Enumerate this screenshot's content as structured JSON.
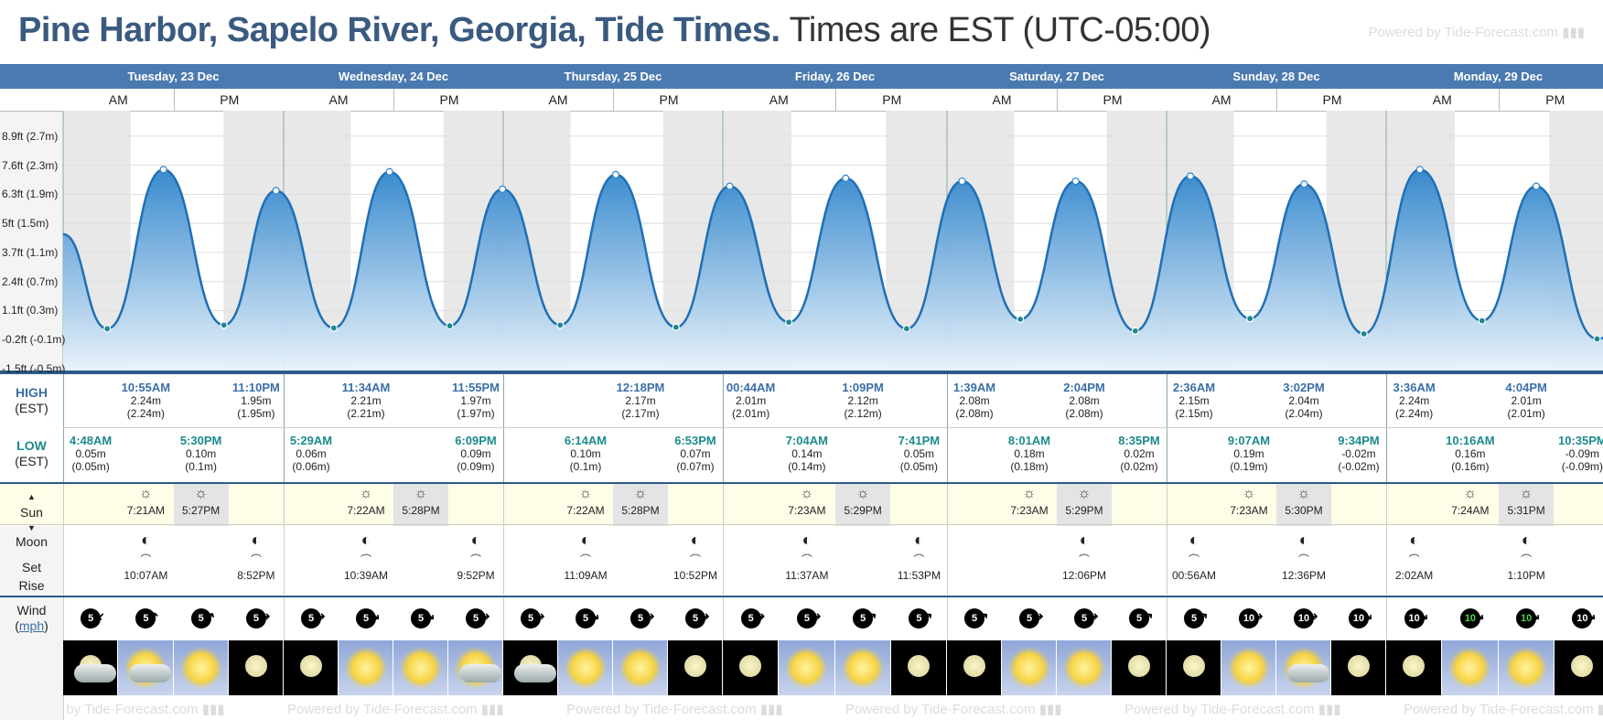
{
  "header": {
    "title_bold": "Pine Harbor, Sapelo River, Georgia, Tide Times.",
    "title_rest": "Times are EST (UTC-05:00)",
    "powered": "Powered by Tide-Forecast.com"
  },
  "days": [
    {
      "label": "Tuesday, 23 Dec",
      "am": "AM",
      "pm": "PM"
    },
    {
      "label": "Wednesday, 24 Dec",
      "am": "AM",
      "pm": "PM"
    },
    {
      "label": "Thursday, 25 Dec",
      "am": "AM",
      "pm": "PM"
    },
    {
      "label": "Friday, 26 Dec",
      "am": "AM",
      "pm": "PM"
    },
    {
      "label": "Saturday, 27 Dec",
      "am": "AM",
      "pm": "PM"
    },
    {
      "label": "Sunday, 28 Dec",
      "am": "AM",
      "pm": "PM"
    },
    {
      "label": "Monday, 29 Dec",
      "am": "AM",
      "pm": "PM"
    }
  ],
  "chart_data": {
    "type": "area",
    "y_tick_labels": [
      "8.9ft (2.7m)",
      "7.6ft (2.3m)",
      "6.3ft (1.9m)",
      "5ft (1.5m)",
      "3.7ft (1.1m)",
      "2.4ft (0.7m)",
      "1.1ft (0.3m)",
      "-0.2ft (-0.1m)",
      "-1.5ft (-0.5m)"
    ],
    "y_tick_values_m": [
      2.7,
      2.3,
      1.9,
      1.5,
      1.1,
      0.7,
      0.3,
      -0.1,
      -0.5
    ],
    "unit": "m",
    "ylim": [
      -0.55,
      3.05
    ],
    "series": [
      {
        "points": [
          {
            "x": "2025-12-23T04:48",
            "y": 0.05,
            "kind": "low"
          },
          {
            "x": "2025-12-23T10:55",
            "y": 2.24,
            "kind": "high"
          },
          {
            "x": "2025-12-23T17:30",
            "y": 0.1,
            "kind": "low"
          },
          {
            "x": "2025-12-23T23:10",
            "y": 1.95,
            "kind": "high"
          },
          {
            "x": "2025-12-24T05:29",
            "y": 0.06,
            "kind": "low"
          },
          {
            "x": "2025-12-24T11:34",
            "y": 2.21,
            "kind": "high"
          },
          {
            "x": "2025-12-24T18:09",
            "y": 0.09,
            "kind": "low"
          },
          {
            "x": "2025-12-24T23:55",
            "y": 1.97,
            "kind": "high"
          },
          {
            "x": "2025-12-25T06:14",
            "y": 0.1,
            "kind": "low"
          },
          {
            "x": "2025-12-25T12:18",
            "y": 2.17,
            "kind": "high"
          },
          {
            "x": "2025-12-25T18:53",
            "y": 0.07,
            "kind": "low"
          },
          {
            "x": "2025-12-26T00:44",
            "y": 2.01,
            "kind": "high"
          },
          {
            "x": "2025-12-26T07:04",
            "y": 0.14,
            "kind": "low"
          },
          {
            "x": "2025-12-26T13:09",
            "y": 2.12,
            "kind": "high"
          },
          {
            "x": "2025-12-26T19:41",
            "y": 0.05,
            "kind": "low"
          },
          {
            "x": "2025-12-27T01:39",
            "y": 2.08,
            "kind": "high"
          },
          {
            "x": "2025-12-27T08:01",
            "y": 0.18,
            "kind": "low"
          },
          {
            "x": "2025-12-27T14:04",
            "y": 2.08,
            "kind": "high"
          },
          {
            "x": "2025-12-27T20:35",
            "y": 0.02,
            "kind": "low"
          },
          {
            "x": "2025-12-28T02:36",
            "y": 2.15,
            "kind": "high"
          },
          {
            "x": "2025-12-28T09:07",
            "y": 0.19,
            "kind": "low"
          },
          {
            "x": "2025-12-28T15:02",
            "y": 2.04,
            "kind": "high"
          },
          {
            "x": "2025-12-28T21:34",
            "y": -0.02,
            "kind": "low"
          },
          {
            "x": "2025-12-29T03:36",
            "y": 2.24,
            "kind": "high"
          },
          {
            "x": "2025-12-29T10:16",
            "y": 0.16,
            "kind": "low"
          },
          {
            "x": "2025-12-29T16:04",
            "y": 2.01,
            "kind": "high"
          },
          {
            "x": "2025-12-29T22:35",
            "y": -0.09,
            "kind": "low"
          }
        ]
      }
    ]
  },
  "labels": {
    "high": "HIGH",
    "low": "LOW",
    "tz": "(EST)",
    "sun": "Sun",
    "moon": "Moon",
    "set": "Set",
    "rise": "Rise",
    "wind": "Wind",
    "mph": "mph"
  },
  "highs": [
    {
      "day": 0,
      "slot": 1,
      "time": "10:55AM",
      "m": "2.24m",
      "mm": "(2.24m)"
    },
    {
      "day": 0,
      "slot": 3,
      "time": "11:10PM",
      "m": "1.95m",
      "mm": "(1.95m)"
    },
    {
      "day": 1,
      "slot": 1,
      "time": "11:34AM",
      "m": "2.21m",
      "mm": "(2.21m)"
    },
    {
      "day": 1,
      "slot": 3,
      "time": "11:55PM",
      "m": "1.97m",
      "mm": "(1.97m)"
    },
    {
      "day": 2,
      "slot": 2,
      "time": "12:18PM",
      "m": "2.17m",
      "mm": "(2.17m)"
    },
    {
      "day": 3,
      "slot": 0,
      "time": "00:44AM",
      "m": "2.01m",
      "mm": "(2.01m)"
    },
    {
      "day": 3,
      "slot": 2,
      "time": "1:09PM",
      "m": "2.12m",
      "mm": "(2.12m)"
    },
    {
      "day": 4,
      "slot": 0,
      "time": "1:39AM",
      "m": "2.08m",
      "mm": "(2.08m)"
    },
    {
      "day": 4,
      "slot": 2,
      "time": "2:04PM",
      "m": "2.08m",
      "mm": "(2.08m)"
    },
    {
      "day": 5,
      "slot": 0,
      "time": "2:36AM",
      "m": "2.15m",
      "mm": "(2.15m)"
    },
    {
      "day": 5,
      "slot": 2,
      "time": "3:02PM",
      "m": "2.04m",
      "mm": "(2.04m)"
    },
    {
      "day": 6,
      "slot": 0,
      "time": "3:36AM",
      "m": "2.24m",
      "mm": "(2.24m)"
    },
    {
      "day": 6,
      "slot": 2,
      "time": "4:04PM",
      "m": "2.01m",
      "mm": "(2.01m)"
    }
  ],
  "lows": [
    {
      "day": 0,
      "slot": 0,
      "time": "4:48AM",
      "m": "0.05m",
      "mm": "(0.05m)"
    },
    {
      "day": 0,
      "slot": 2,
      "time": "5:30PM",
      "m": "0.10m",
      "mm": "(0.1m)"
    },
    {
      "day": 1,
      "slot": 0,
      "time": "5:29AM",
      "m": "0.06m",
      "mm": "(0.06m)"
    },
    {
      "day": 1,
      "slot": 3,
      "time": "6:09PM",
      "m": "0.09m",
      "mm": "(0.09m)"
    },
    {
      "day": 2,
      "slot": 1,
      "time": "6:14AM",
      "m": "0.10m",
      "mm": "(0.1m)"
    },
    {
      "day": 2,
      "slot": 3,
      "time": "6:53PM",
      "m": "0.07m",
      "mm": "(0.07m)"
    },
    {
      "day": 3,
      "slot": 1,
      "time": "7:04AM",
      "m": "0.14m",
      "mm": "(0.14m)"
    },
    {
      "day": 3,
      "slot": 3,
      "time": "7:41PM",
      "m": "0.05m",
      "mm": "(0.05m)"
    },
    {
      "day": 4,
      "slot": 1,
      "time": "8:01AM",
      "m": "0.18m",
      "mm": "(0.18m)"
    },
    {
      "day": 4,
      "slot": 3,
      "time": "8:35PM",
      "m": "0.02m",
      "mm": "(0.02m)"
    },
    {
      "day": 5,
      "slot": 1,
      "time": "9:07AM",
      "m": "0.19m",
      "mm": "(0.19m)"
    },
    {
      "day": 5,
      "slot": 3,
      "time": "9:34PM",
      "m": "-0.02m",
      "mm": "(-0.02m)"
    },
    {
      "day": 6,
      "slot": 1,
      "time": "10:16AM",
      "m": "0.16m",
      "mm": "(0.16m)"
    },
    {
      "day": 6,
      "slot": 3,
      "time": "10:35PM",
      "m": "-0.09m",
      "mm": "(-0.09m)"
    }
  ],
  "sun": [
    {
      "day": 0,
      "rise": "7:21AM",
      "set": "5:27PM"
    },
    {
      "day": 1,
      "rise": "7:22AM",
      "set": "5:28PM"
    },
    {
      "day": 2,
      "rise": "7:22AM",
      "set": "5:28PM"
    },
    {
      "day": 3,
      "rise": "7:23AM",
      "set": "5:29PM"
    },
    {
      "day": 4,
      "rise": "7:23AM",
      "set": "5:29PM"
    },
    {
      "day": 5,
      "rise": "7:23AM",
      "set": "5:30PM"
    },
    {
      "day": 6,
      "rise": "7:24AM",
      "set": "5:31PM"
    }
  ],
  "moon": [
    {
      "day": 0,
      "slot": 1,
      "time": "10:07AM"
    },
    {
      "day": 0,
      "slot": 3,
      "time": "8:52PM"
    },
    {
      "day": 1,
      "slot": 1,
      "time": "10:39AM"
    },
    {
      "day": 1,
      "slot": 3,
      "time": "9:52PM"
    },
    {
      "day": 2,
      "slot": 1,
      "time": "11:09AM"
    },
    {
      "day": 2,
      "slot": 3,
      "time": "10:52PM"
    },
    {
      "day": 3,
      "slot": 1,
      "time": "11:37AM"
    },
    {
      "day": 3,
      "slot": 3,
      "time": "11:53PM"
    },
    {
      "day": 4,
      "slot": 2,
      "time": "12:06PM"
    },
    {
      "day": 5,
      "slot": 0,
      "time": "00:56AM"
    },
    {
      "day": 5,
      "slot": 2,
      "time": "12:36PM"
    },
    {
      "day": 6,
      "slot": 0,
      "time": "2:02AM"
    },
    {
      "day": 6,
      "slot": 2,
      "time": "1:10PM"
    }
  ],
  "wind": [
    {
      "v": "5",
      "dir": 225,
      "color": "#ffffff"
    },
    {
      "v": "5",
      "dir": 0,
      "color": "#ffffff"
    },
    {
      "v": "5",
      "dir": 30,
      "color": "#ffffff"
    },
    {
      "v": "5",
      "dir": 90,
      "color": "#ffffff"
    },
    {
      "v": "5",
      "dir": 90,
      "color": "#ffffff"
    },
    {
      "v": "5",
      "dir": 130,
      "color": "#ffffff"
    },
    {
      "v": "5",
      "dir": 130,
      "color": "#ffffff"
    },
    {
      "v": "5",
      "dir": 90,
      "color": "#ffffff"
    },
    {
      "v": "5",
      "dir": 90,
      "color": "#ffffff"
    },
    {
      "v": "5",
      "dir": 130,
      "color": "#ffffff"
    },
    {
      "v": "5",
      "dir": 90,
      "color": "#ffffff"
    },
    {
      "v": "5",
      "dir": 90,
      "color": "#ffffff"
    },
    {
      "v": "5",
      "dir": 90,
      "color": "#ffffff"
    },
    {
      "v": "5",
      "dir": 90,
      "color": "#ffffff"
    },
    {
      "v": "5",
      "dir": 50,
      "color": "#ffffff"
    },
    {
      "v": "5",
      "dir": 50,
      "color": "#ffffff"
    },
    {
      "v": "5",
      "dir": 50,
      "color": "#ffffff"
    },
    {
      "v": "5",
      "dir": 90,
      "color": "#ffffff"
    },
    {
      "v": "5",
      "dir": 90,
      "color": "#ffffff"
    },
    {
      "v": "5",
      "dir": 50,
      "color": "#ffffff"
    },
    {
      "v": "5",
      "dir": 50,
      "color": "#ffffff"
    },
    {
      "v": "10",
      "dir": 90,
      "color": "#ffffff"
    },
    {
      "v": "10",
      "dir": 90,
      "color": "#ffffff"
    },
    {
      "v": "10",
      "dir": 130,
      "color": "#ffffff"
    },
    {
      "v": "10",
      "dir": 130,
      "color": "#ffffff"
    },
    {
      "v": "10",
      "dir": 130,
      "color": "#4cd34c"
    },
    {
      "v": "10",
      "dir": 130,
      "color": "#4cd34c"
    },
    {
      "v": "10",
      "dir": 130,
      "color": "#ffffff"
    }
  ],
  "weather": [
    "cloudy-night",
    "partly-cloudy",
    "sunny",
    "clear-night",
    "clear-night",
    "sunny",
    "sunny",
    "partly-cloudy",
    "cloudy-night",
    "sunny",
    "sunny",
    "clear-night",
    "clear-night",
    "sunny",
    "sunny",
    "clear-night",
    "clear-night",
    "sunny",
    "sunny",
    "clear-night",
    "clear-night",
    "sunny",
    "partly-cloudy",
    "clear-night",
    "clear-night",
    "sunny",
    "sunny",
    "clear-night"
  ],
  "colors": {
    "accent": "#4a7ab0",
    "title": "#3a5a80",
    "tide_fill": "#3d8fd0",
    "high": "#3a6fa8",
    "low": "#1d8a8c"
  }
}
